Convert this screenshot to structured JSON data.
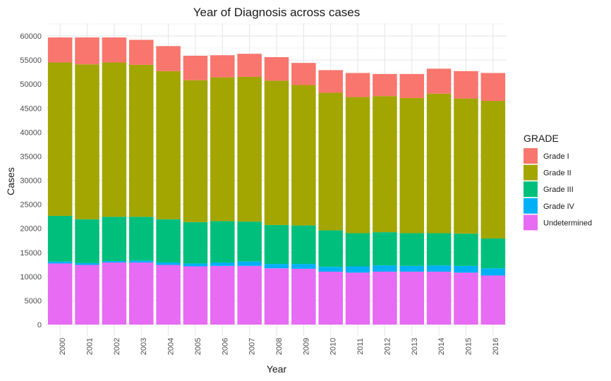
{
  "chart_data": {
    "type": "bar",
    "stacked": true,
    "title": "Year of Diagnosis across cases",
    "xlabel": "Year",
    "ylabel": "Cases",
    "ylim": [
      0,
      62000
    ],
    "yticks": [
      0,
      5000,
      10000,
      15000,
      20000,
      25000,
      30000,
      35000,
      40000,
      45000,
      50000,
      55000,
      60000
    ],
    "grid": true,
    "legend_title": "GRADE",
    "legend_position": "right",
    "categories": [
      "2000",
      "2001",
      "2002",
      "2003",
      "2004",
      "2005",
      "2006",
      "2007",
      "2008",
      "2009",
      "2010",
      "2011",
      "2012",
      "2013",
      "2014",
      "2015",
      "2016"
    ],
    "series": [
      {
        "name": "Undetermined",
        "color": "#E76BF3",
        "values": [
          12700,
          12400,
          12900,
          12900,
          12400,
          12100,
          12200,
          12200,
          11700,
          11600,
          11000,
          10800,
          11000,
          11000,
          11000,
          10800,
          10200
        ]
      },
      {
        "name": "Grade IV",
        "color": "#00B0F6",
        "values": [
          400,
          400,
          300,
          400,
          500,
          600,
          700,
          900,
          900,
          1000,
          1000,
          1300,
          1300,
          1200,
          1300,
          1400,
          1500
        ]
      },
      {
        "name": "Grade III",
        "color": "#00BF7D",
        "values": [
          9500,
          9100,
          9200,
          9100,
          9000,
          8600,
          8600,
          8300,
          8100,
          8000,
          7600,
          6900,
          6900,
          6800,
          6700,
          6700,
          6200
        ]
      },
      {
        "name": "Grade II",
        "color": "#A3A500",
        "values": [
          31900,
          32200,
          32100,
          31600,
          30800,
          29500,
          29900,
          30100,
          30000,
          29200,
          28600,
          28300,
          28300,
          28100,
          29000,
          28100,
          28600
        ]
      },
      {
        "name": "Grade I",
        "color": "#F8766D",
        "values": [
          5200,
          5600,
          5200,
          5200,
          5200,
          5100,
          4600,
          4800,
          4900,
          4600,
          4700,
          5000,
          4600,
          5000,
          5200,
          5700,
          5800
        ]
      }
    ],
    "legend_order": [
      "Grade I",
      "Grade II",
      "Grade III",
      "Grade IV",
      "Undetermined"
    ]
  }
}
